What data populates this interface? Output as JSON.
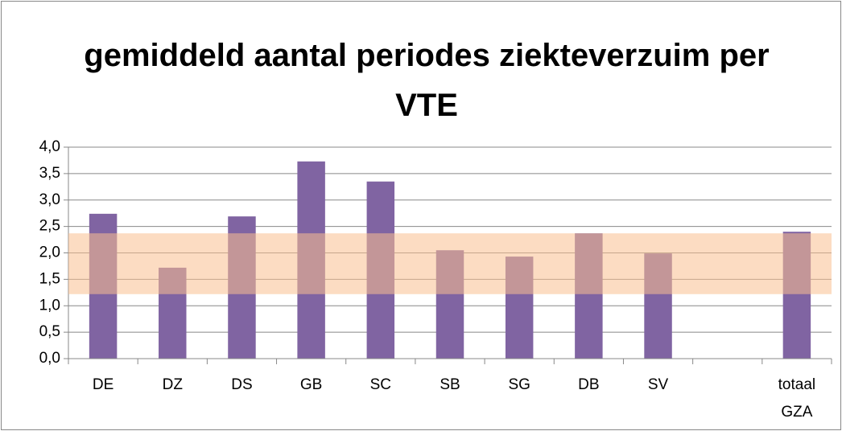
{
  "chart_data": {
    "type": "bar",
    "title": "gemiddeld aantal periodes ziekteverzuim per VTE",
    "categories": [
      "DE",
      "DZ",
      "DS",
      "GB",
      "SC",
      "SB",
      "SG",
      "DB",
      "SV",
      null,
      "totaal GZA"
    ],
    "values": [
      2.74,
      1.72,
      2.69,
      3.73,
      3.35,
      2.05,
      1.93,
      2.37,
      1.99,
      null,
      2.4
    ],
    "color": "#8064a2",
    "reference_band": {
      "from": 1.22,
      "to": 2.37,
      "color": "#fac090"
    },
    "ylim": [
      0,
      4
    ],
    "yticks": [
      {
        "value": 0,
        "label": "0,0"
      },
      {
        "value": 0.5,
        "label": "0,5"
      },
      {
        "value": 1,
        "label": "1,0"
      },
      {
        "value": 1.5,
        "label": "1,5"
      },
      {
        "value": 2,
        "label": "2,0"
      },
      {
        "value": 2.5,
        "label": "2,5"
      },
      {
        "value": 3,
        "label": "3,0"
      },
      {
        "value": 3.5,
        "label": "3,5"
      },
      {
        "value": 4,
        "label": "4,0"
      }
    ],
    "grid": true
  }
}
